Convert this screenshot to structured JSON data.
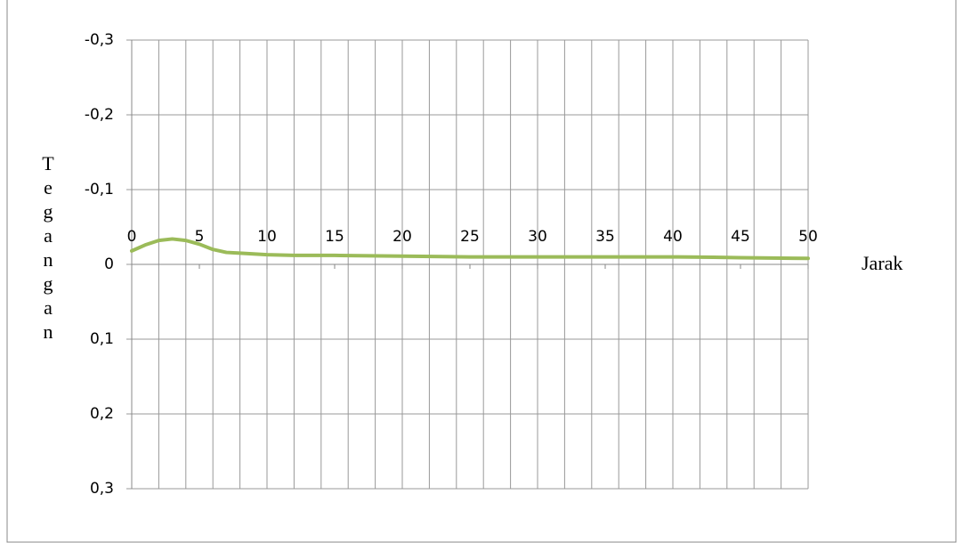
{
  "chart_data": {
    "type": "line",
    "x_label": "Jarak",
    "y_label": "Tegangan",
    "x": [
      0,
      1,
      2,
      3,
      4,
      5,
      6,
      7,
      8,
      10,
      12,
      15,
      20,
      25,
      30,
      35,
      40,
      43,
      45,
      50
    ],
    "series": [
      {
        "name": "Tegangan",
        "color": "#9bbb59",
        "values": [
          -0.018,
          -0.026,
          -0.032,
          -0.034,
          -0.032,
          -0.027,
          -0.02,
          -0.016,
          -0.015,
          -0.013,
          -0.012,
          -0.012,
          -0.011,
          -0.01,
          -0.01,
          -0.01,
          -0.01,
          -0.0095,
          -0.009,
          -0.008
        ]
      }
    ],
    "xlim": [
      0,
      50
    ],
    "xticks": [
      0,
      5,
      10,
      15,
      20,
      25,
      30,
      35,
      40,
      45,
      50
    ],
    "xgridlines": [
      0,
      2,
      4,
      6,
      8,
      10,
      12,
      14,
      16,
      18,
      20,
      22,
      24,
      26,
      28,
      30,
      32,
      34,
      36,
      38,
      40,
      42,
      44,
      46,
      48,
      50
    ],
    "ylim": [
      -0.3,
      0.3
    ],
    "y_inverted": true,
    "yticks": [
      {
        "value": -0.3,
        "label": "-0,3"
      },
      {
        "value": -0.2,
        "label": "-0,2"
      },
      {
        "value": -0.1,
        "label": "-0,1"
      },
      0,
      {
        "value": 0.1,
        "label": "0,1"
      },
      {
        "value": 0.2,
        "label": "0,2"
      },
      {
        "value": 0.3,
        "label": "0,3"
      }
    ],
    "grid": true
  }
}
